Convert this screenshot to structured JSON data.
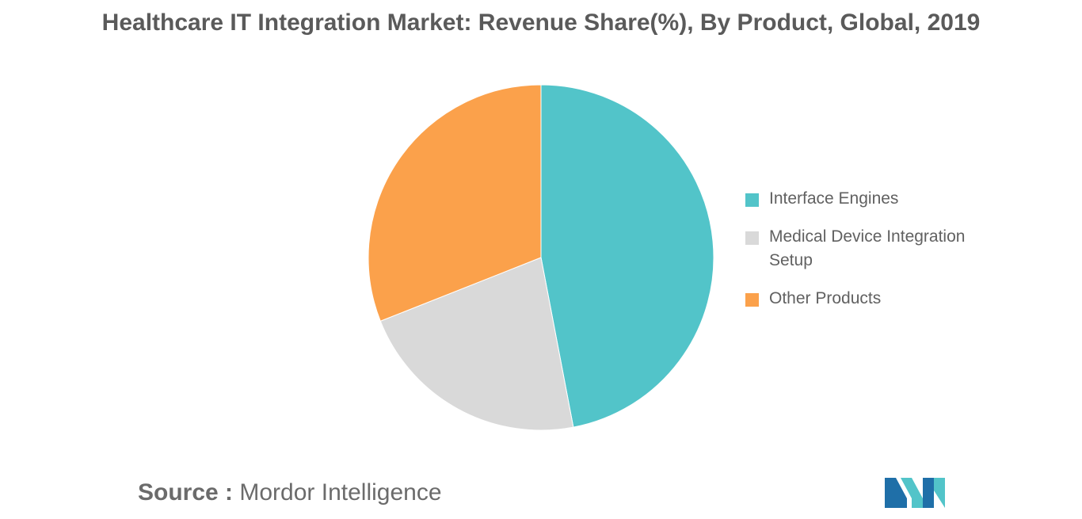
{
  "chart_data": {
    "type": "pie",
    "title": "Healthcare IT Integration Market: Revenue Share(%), By Product, Global, 2019",
    "series": [
      {
        "name": "Interface Engines",
        "value": 47,
        "color": "#52c4c9"
      },
      {
        "name": "Medical Device Integration Setup",
        "value": 22,
        "color": "#d9d9d9"
      },
      {
        "name": "Other Products",
        "value": 31,
        "color": "#fba14b"
      }
    ],
    "legend_position": "right"
  },
  "legend": {
    "items": [
      {
        "label": "Interface Engines",
        "color": "#52c4c9"
      },
      {
        "label": "Medical Device Integration Setup",
        "color": "#d9d9d9"
      },
      {
        "label": "Other Products",
        "color": "#fba14b"
      }
    ]
  },
  "source": {
    "prefix": "Source :",
    "name": "Mordor Intelligence"
  },
  "logo": {
    "icon": "mordor-intelligence-logo-icon",
    "colors": [
      "#1f6fa8",
      "#52c4c9"
    ]
  }
}
